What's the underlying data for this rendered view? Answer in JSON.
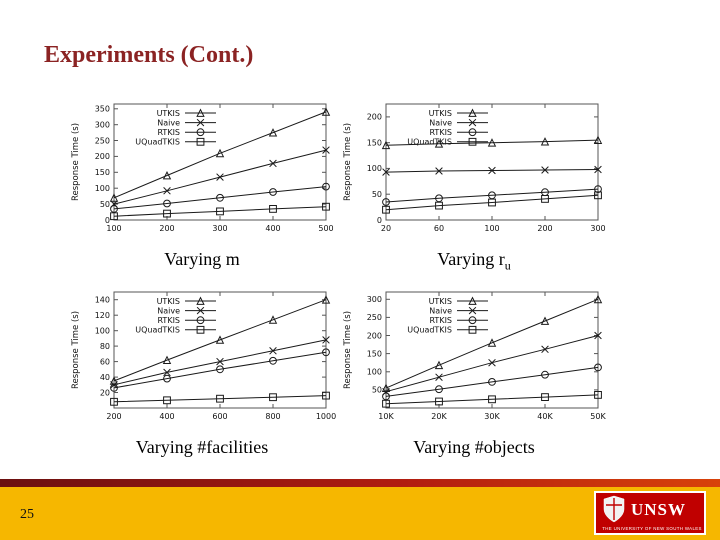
{
  "title": "Experiments (Cont.)",
  "theme": {
    "title_color": "#8b2323",
    "footer_yellow": "#f6b700",
    "stripe_red_dark": "#6b1010",
    "stripe_red_bright": "#d8420a",
    "logo_red": "#c00000",
    "line_color": "#1a1a1a"
  },
  "captions": [
    {
      "text": "Varying m",
      "sub": ""
    },
    {
      "text": "Varying r",
      "sub": "u"
    },
    {
      "text": "Varying #facilities",
      "sub": ""
    },
    {
      "text": "Varying #objects",
      "sub": ""
    }
  ],
  "footer": {
    "page_number": "25",
    "logo_text": "UNSW",
    "logo_tagline": "THE UNIVERSITY OF NEW SOUTH WALES"
  },
  "chart_data": [
    {
      "type": "line",
      "caption": "Varying m",
      "ylabel": "Response Time (s)",
      "xticks": [
        "100",
        "200",
        "300",
        "400",
        "500"
      ],
      "yticks": [
        0,
        50,
        100,
        150,
        200,
        250,
        300,
        350
      ],
      "ylim": [
        0,
        365
      ],
      "legend_position": "top-left",
      "grid": false,
      "series": [
        {
          "name": "UTKIS",
          "marker": "triangle",
          "values": [
            70,
            140,
            210,
            275,
            340
          ]
        },
        {
          "name": "Naive",
          "marker": "x",
          "values": [
            50,
            92,
            135,
            178,
            220
          ]
        },
        {
          "name": "RTKIS",
          "marker": "circle",
          "values": [
            35,
            52,
            70,
            88,
            105
          ]
        },
        {
          "name": "UQuadTKIS",
          "marker": "square",
          "values": [
            12,
            20,
            27,
            35,
            42
          ]
        }
      ]
    },
    {
      "type": "line",
      "caption": "Varying ru",
      "ylabel": "Response Time (s)",
      "xticks": [
        "20",
        "60",
        "100",
        "200",
        "300"
      ],
      "yticks": [
        0,
        50,
        100,
        150,
        200
      ],
      "ylim": [
        0,
        225
      ],
      "legend_position": "top-left",
      "grid": false,
      "series": [
        {
          "name": "UTKIS",
          "marker": "triangle",
          "values": [
            145,
            148,
            150,
            152,
            155
          ]
        },
        {
          "name": "Naive",
          "marker": "x",
          "values": [
            93,
            95,
            96,
            97,
            98
          ]
        },
        {
          "name": "RTKIS",
          "marker": "circle",
          "values": [
            35,
            42,
            48,
            54,
            60
          ]
        },
        {
          "name": "UQuadTKIS",
          "marker": "square",
          "values": [
            20,
            28,
            34,
            41,
            48
          ]
        }
      ]
    },
    {
      "type": "line",
      "caption": "Varying #facilities",
      "ylabel": "Response Time (s)",
      "xticks": [
        "200",
        "400",
        "600",
        "800",
        "1000"
      ],
      "yticks": [
        20,
        40,
        60,
        80,
        100,
        120,
        140
      ],
      "ylim": [
        0,
        150
      ],
      "legend_position": "top-left",
      "grid": false,
      "series": [
        {
          "name": "UTKIS",
          "marker": "triangle",
          "values": [
            35,
            62,
            88,
            114,
            140
          ]
        },
        {
          "name": "Naive",
          "marker": "x",
          "values": [
            30,
            46,
            60,
            74,
            88
          ]
        },
        {
          "name": "RTKIS",
          "marker": "circle",
          "values": [
            26,
            38,
            50,
            61,
            72
          ]
        },
        {
          "name": "UQuadTKIS",
          "marker": "square",
          "values": [
            8,
            10,
            12,
            14,
            16
          ]
        }
      ]
    },
    {
      "type": "line",
      "caption": "Varying #objects",
      "ylabel": "Response Time (s)",
      "xticks": [
        "10K",
        "20K",
        "30K",
        "40K",
        "50K"
      ],
      "yticks": [
        50,
        100,
        150,
        200,
        250,
        300
      ],
      "ylim": [
        0,
        320
      ],
      "legend_position": "top-left",
      "grid": false,
      "series": [
        {
          "name": "UTKIS",
          "marker": "triangle",
          "values": [
            55,
            118,
            180,
            240,
            300
          ]
        },
        {
          "name": "Naive",
          "marker": "x",
          "values": [
            45,
            85,
            125,
            162,
            200
          ]
        },
        {
          "name": "RTKIS",
          "marker": "circle",
          "values": [
            32,
            52,
            72,
            92,
            112
          ]
        },
        {
          "name": "UQuadTKIS",
          "marker": "square",
          "values": [
            12,
            18,
            24,
            30,
            36
          ]
        }
      ]
    }
  ]
}
